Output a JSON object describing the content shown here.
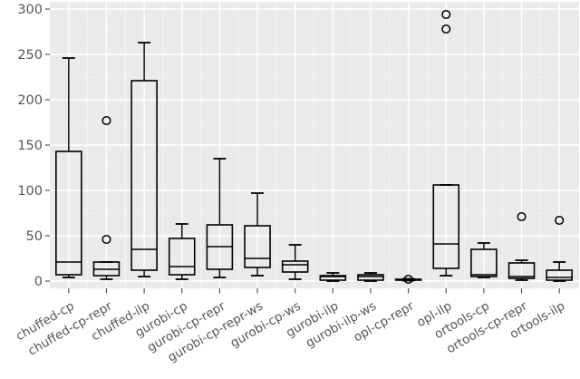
{
  "figure": {
    "background_color": "#ffffff",
    "panel_background_color": "#eaeaea",
    "grid_major_color": "#ffffff",
    "grid_minor_color": "#ffffff",
    "box_line_color": "#000000",
    "tick_text_color": "#555555"
  },
  "chart_data": {
    "type": "boxplot",
    "title": "",
    "xlabel": "",
    "ylabel": "",
    "ylim": [
      -8,
      308
    ],
    "yticks": [
      0,
      50,
      100,
      150,
      200,
      250,
      300
    ],
    "yticks_minor": [
      25,
      75,
      125,
      175,
      225,
      275
    ],
    "grid": "major and minor white gridlines on gray panel",
    "legend": null,
    "categories": [
      "chuffed-cp",
      "chuffed-cp-repr",
      "chuffed-ilp",
      "gurobi-cp",
      "gurobi-cp-repr",
      "gurobi-cp-repr-ws",
      "gurobi-cp-ws",
      "gurobi-ilp",
      "gurobi-ilp-ws",
      "opl-cp-repr",
      "opl-ilp",
      "ortools-cp",
      "ortools-cp-repr",
      "ortools-ilp"
    ],
    "boxes": [
      {
        "label": "chuffed-cp",
        "whislo": 4,
        "q1": 7,
        "med": 21,
        "q3": 143,
        "whishi": 246,
        "fliers": []
      },
      {
        "label": "chuffed-cp-repr",
        "whislo": 2,
        "q1": 6,
        "med": 13,
        "q3": 21,
        "whishi": 21,
        "fliers": [
          46,
          177
        ]
      },
      {
        "label": "chuffed-ilp",
        "whislo": 5,
        "q1": 12,
        "med": 35,
        "q3": 221,
        "whishi": 263,
        "fliers": []
      },
      {
        "label": "gurobi-cp",
        "whislo": 2,
        "q1": 7,
        "med": 16,
        "q3": 47,
        "whishi": 63,
        "fliers": []
      },
      {
        "label": "gurobi-cp-repr",
        "whislo": 4,
        "q1": 13,
        "med": 38,
        "q3": 62,
        "whishi": 135,
        "fliers": []
      },
      {
        "label": "gurobi-cp-repr-ws",
        "whislo": 6,
        "q1": 15,
        "med": 25,
        "q3": 61,
        "whishi": 97,
        "fliers": []
      },
      {
        "label": "gurobi-cp-ws",
        "whislo": 2,
        "q1": 10,
        "med": 18,
        "q3": 22,
        "whishi": 40,
        "fliers": []
      },
      {
        "label": "gurobi-ilp",
        "whislo": 0,
        "q1": 1,
        "med": 5,
        "q3": 6,
        "whishi": 9,
        "fliers": []
      },
      {
        "label": "gurobi-ilp-ws",
        "whislo": 0,
        "q1": 1,
        "med": 5,
        "q3": 7,
        "whishi": 9,
        "fliers": []
      },
      {
        "label": "opl-cp-repr",
        "whislo": 0.5,
        "q1": 1,
        "med": 1.5,
        "q3": 2,
        "whishi": 2.5,
        "fliers": [
          2
        ]
      },
      {
        "label": "opl-ilp",
        "whislo": 6,
        "q1": 14,
        "med": 41,
        "q3": 106,
        "whishi": 106,
        "fliers": [
          278,
          294
        ]
      },
      {
        "label": "ortools-cp",
        "whislo": 4,
        "q1": 5,
        "med": 7,
        "q3": 35,
        "whishi": 42,
        "fliers": []
      },
      {
        "label": "ortools-cp-repr",
        "whislo": 1,
        "q1": 3,
        "med": 5,
        "q3": 20,
        "whishi": 23,
        "fliers": [
          71
        ]
      },
      {
        "label": "ortools-ilp",
        "whislo": 0,
        "q1": 1,
        "med": 4,
        "q3": 12,
        "whishi": 21,
        "fliers": [
          67
        ]
      }
    ]
  }
}
